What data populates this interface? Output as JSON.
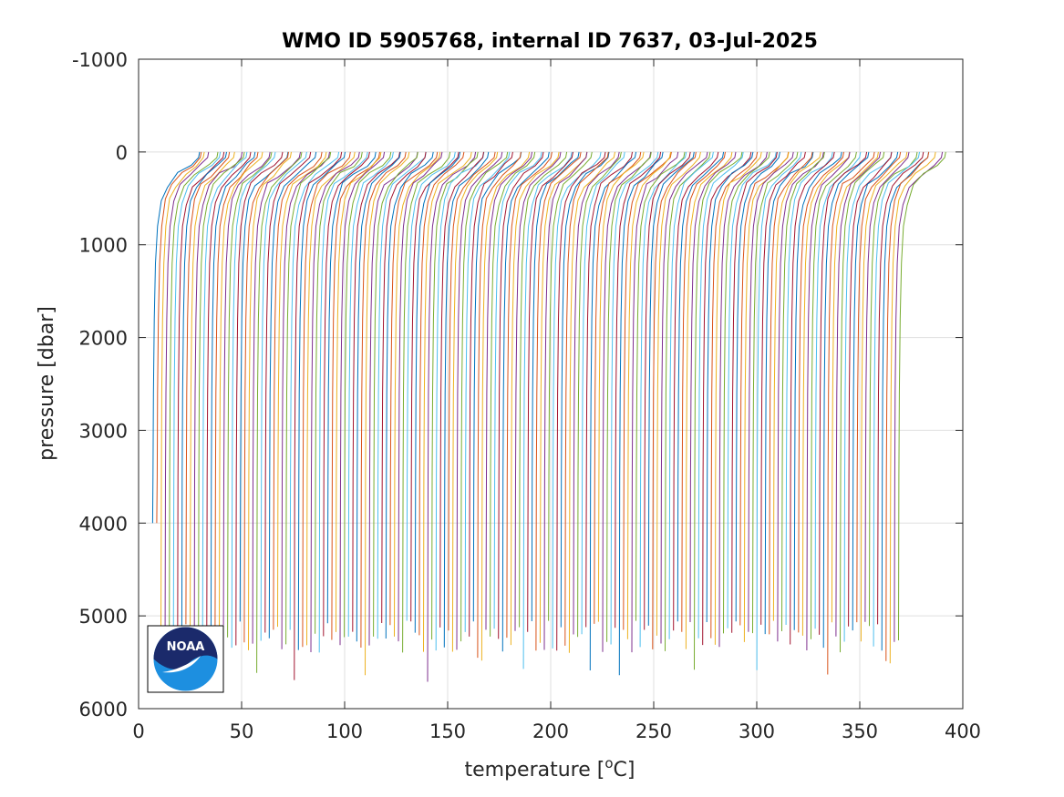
{
  "chart_data": {
    "type": "line",
    "title": "WMO ID 5905768, internal ID 7637, 03-Jul-2025",
    "xlabel": "temperature [",
    "xlabel_sup": "o",
    "xlabel_end": "C]",
    "ylabel": "pressure [dbar]",
    "xlim": [
      0,
      400
    ],
    "ylim": [
      -1000,
      6000
    ],
    "y_reversed": true,
    "grid": true,
    "x_ticks": [
      0,
      50,
      100,
      150,
      200,
      250,
      300,
      350,
      400
    ],
    "y_ticks": [
      -1000,
      0,
      1000,
      2000,
      3000,
      4000,
      5000,
      6000
    ],
    "profiles": {
      "count": 180,
      "description": "successive temperature profiles, each offset in x; surface at pressure 0",
      "first_deep_temperature": 7,
      "last_deep_temperature": 369,
      "surface_offset": 22,
      "min_bottom_pressure": 4000,
      "max_bottom_pressure": 5800
    },
    "series_colors": [
      "#0072bd",
      "#d95319",
      "#edb120",
      "#7e2f8e",
      "#77ac30",
      "#4dbeee",
      "#a2142f"
    ]
  },
  "logo": {
    "name": "NOAA",
    "text": "NOAA",
    "colors": {
      "top": "#1b2a6b",
      "bottom": "#1d8fe0",
      "frame": "#000000"
    }
  }
}
